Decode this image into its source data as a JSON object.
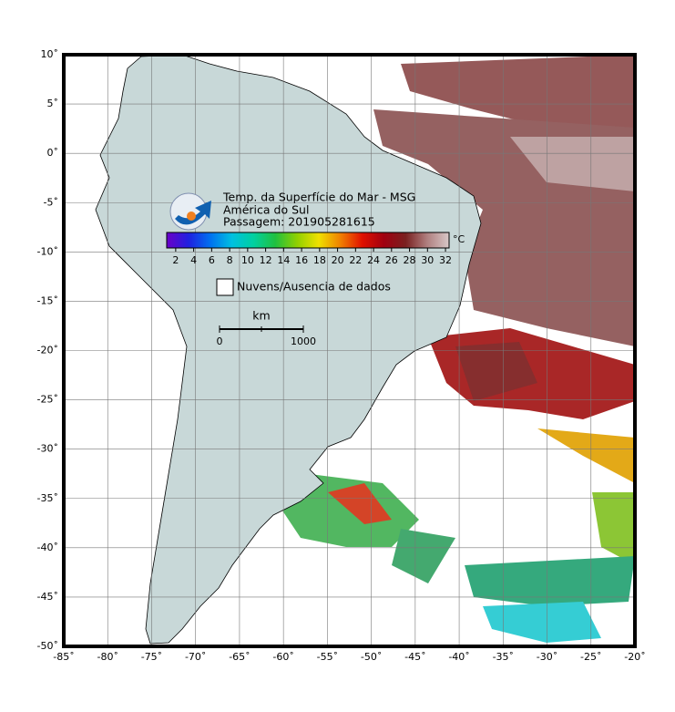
{
  "map": {
    "xlim": [
      -85,
      -20
    ],
    "ylim": [
      -50,
      10
    ],
    "xticks": [
      {
        "value": -85,
        "label": "-85˚"
      },
      {
        "value": -80,
        "label": "-80˚"
      },
      {
        "value": -75,
        "label": "-75˚"
      },
      {
        "value": -70,
        "label": "-70˚"
      },
      {
        "value": -65,
        "label": "-65˚"
      },
      {
        "value": -60,
        "label": "-60˚"
      },
      {
        "value": -55,
        "label": "-55˚"
      },
      {
        "value": -50,
        "label": "-50˚"
      },
      {
        "value": -45,
        "label": "-45˚"
      },
      {
        "value": -40,
        "label": "-40˚"
      },
      {
        "value": -35,
        "label": "-35˚"
      },
      {
        "value": -30,
        "label": "-30˚"
      },
      {
        "value": -25,
        "label": "-25˚"
      },
      {
        "value": -20,
        "label": "-20˚"
      }
    ],
    "yticks": [
      {
        "value": 10,
        "label": "10˚"
      },
      {
        "value": 5,
        "label": "5˚"
      },
      {
        "value": 0,
        "label": "0˚"
      },
      {
        "value": -5,
        "label": "-5˚"
      },
      {
        "value": -10,
        "label": "-10˚"
      },
      {
        "value": -15,
        "label": "-15˚"
      },
      {
        "value": -20,
        "label": "-20˚"
      },
      {
        "value": -25,
        "label": "-25˚"
      },
      {
        "value": -30,
        "label": "-30˚"
      },
      {
        "value": -35,
        "label": "-35˚"
      },
      {
        "value": -40,
        "label": "-40˚"
      },
      {
        "value": -45,
        "label": "-45˚"
      },
      {
        "value": -50,
        "label": "-50˚"
      }
    ],
    "grid": true
  },
  "header": {
    "title": "Temp. da Superfície do Mar - MSG",
    "region": "América do Sul",
    "pass": "Passagem: 201905281615"
  },
  "colorbar": {
    "unit": "°C",
    "clim": [
      1,
      32.4
    ],
    "ticks": [
      2,
      4,
      6,
      8,
      10,
      12,
      14,
      16,
      18,
      20,
      22,
      24,
      26,
      28,
      30,
      32
    ],
    "colors": [
      "#6a00c8",
      "#2020e0",
      "#0070f0",
      "#00c0e0",
      "#00d0a0",
      "#20c040",
      "#90d000",
      "#f0e000",
      "#f08000",
      "#e01000",
      "#a00010",
      "#7a2020",
      "#b08080",
      "#d8c8c8"
    ]
  },
  "legend": {
    "label": "Nuvens/Ausencia de dados"
  },
  "scale": {
    "unit": "km",
    "start": "0",
    "end": "1000"
  }
}
